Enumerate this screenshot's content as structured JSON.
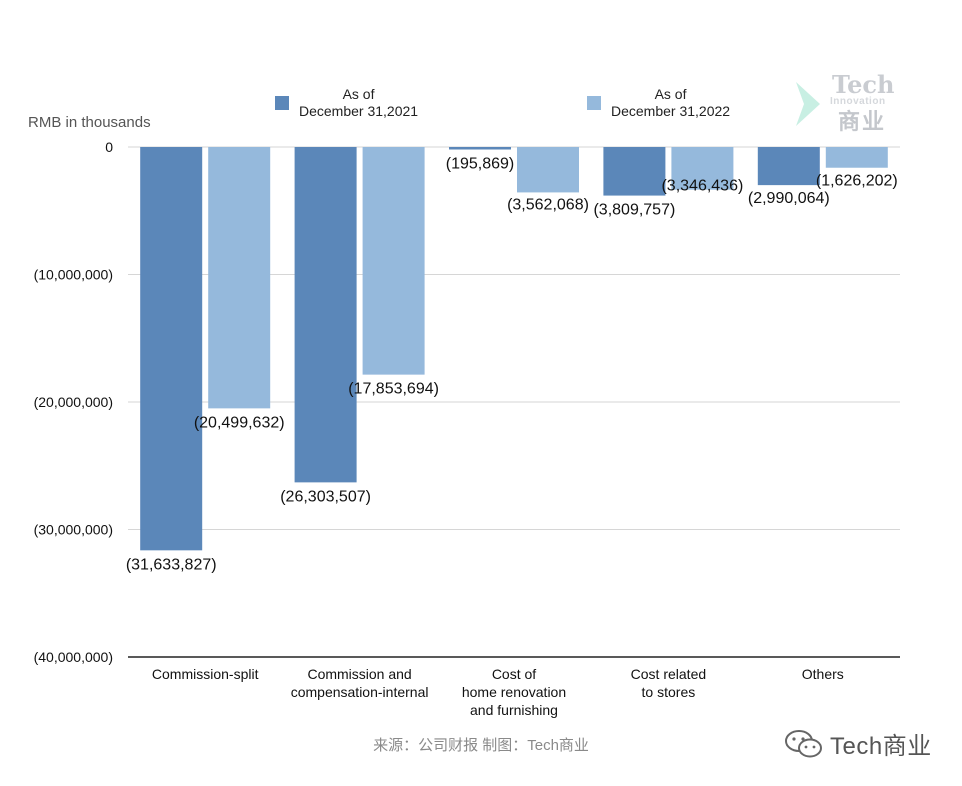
{
  "chart_data": {
    "type": "bar",
    "unit_label": "RMB in thousands",
    "categories": [
      "Commission-split",
      "Commission and\ncompensation-internal",
      "Cost of\nhome renovation\nand furnishing",
      "Cost related\nto stores",
      "Others"
    ],
    "series": [
      {
        "name": "As of\nDecember 31,2021",
        "color": "#5b87b9",
        "values": [
          -31633827,
          -26303507,
          -195869,
          -3809757,
          -2990064
        ],
        "labels": [
          "(31,633,827)",
          "(26,303,507)",
          "(195,869)",
          "(3,809,757)",
          "(2,990,064)"
        ]
      },
      {
        "name": "As of\nDecember 31,2022",
        "color": "#95b9dc",
        "values": [
          -20499632,
          -17853694,
          -3562068,
          -3346436,
          -1626202
        ],
        "labels": [
          "(20,499,632)",
          "(17,853,694)",
          "(3,562,068)",
          "(3,346,436)",
          "(1,626,202)"
        ]
      }
    ],
    "yticks": [
      0,
      -10000000,
      -20000000,
      -30000000,
      -40000000
    ],
    "ytick_labels": [
      "0",
      "(10,000,000)",
      "(20,000,000)",
      "(30,000,000)",
      "(40,000,000)"
    ],
    "ylim": [
      -40000000,
      0
    ],
    "grid": true,
    "legend": "top"
  },
  "source_text": "来源：公司财报 制图：Tech商业",
  "wechat_text": "Tech商业",
  "watermark": {
    "line1": "Tech",
    "line2": "Innovation",
    "line3": "商业"
  }
}
